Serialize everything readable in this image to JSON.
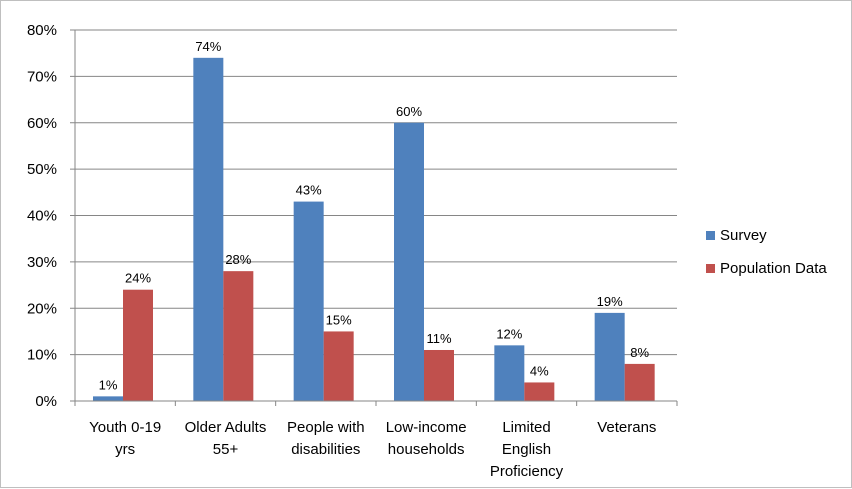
{
  "chart_data": {
    "type": "bar",
    "categories": [
      [
        "Youth 0-19",
        "yrs"
      ],
      [
        "Older Adults",
        "55+"
      ],
      [
        "People with",
        "disabilities"
      ],
      [
        "Low-income",
        "households"
      ],
      [
        "Limited",
        "English",
        "Proficiency"
      ],
      [
        "Veterans"
      ]
    ],
    "series": [
      {
        "name": "Survey",
        "color": "#4f81bd",
        "values": [
          1,
          74,
          43,
          60,
          12,
          19
        ],
        "labels": [
          "1%",
          "74%",
          "43%",
          "60%",
          "12%",
          "19%"
        ]
      },
      {
        "name": "Population Data",
        "color": "#c0504d",
        "values": [
          24,
          28,
          15,
          11,
          4,
          8
        ],
        "labels": [
          "24%",
          "28%",
          "15%",
          "11%",
          "4%",
          "8%"
        ]
      }
    ],
    "yticks": [
      "0%",
      "10%",
      "20%",
      "30%",
      "40%",
      "50%",
      "60%",
      "70%",
      "80%"
    ],
    "ylim": [
      0,
      80
    ],
    "grid": true,
    "legend_position": "right"
  }
}
